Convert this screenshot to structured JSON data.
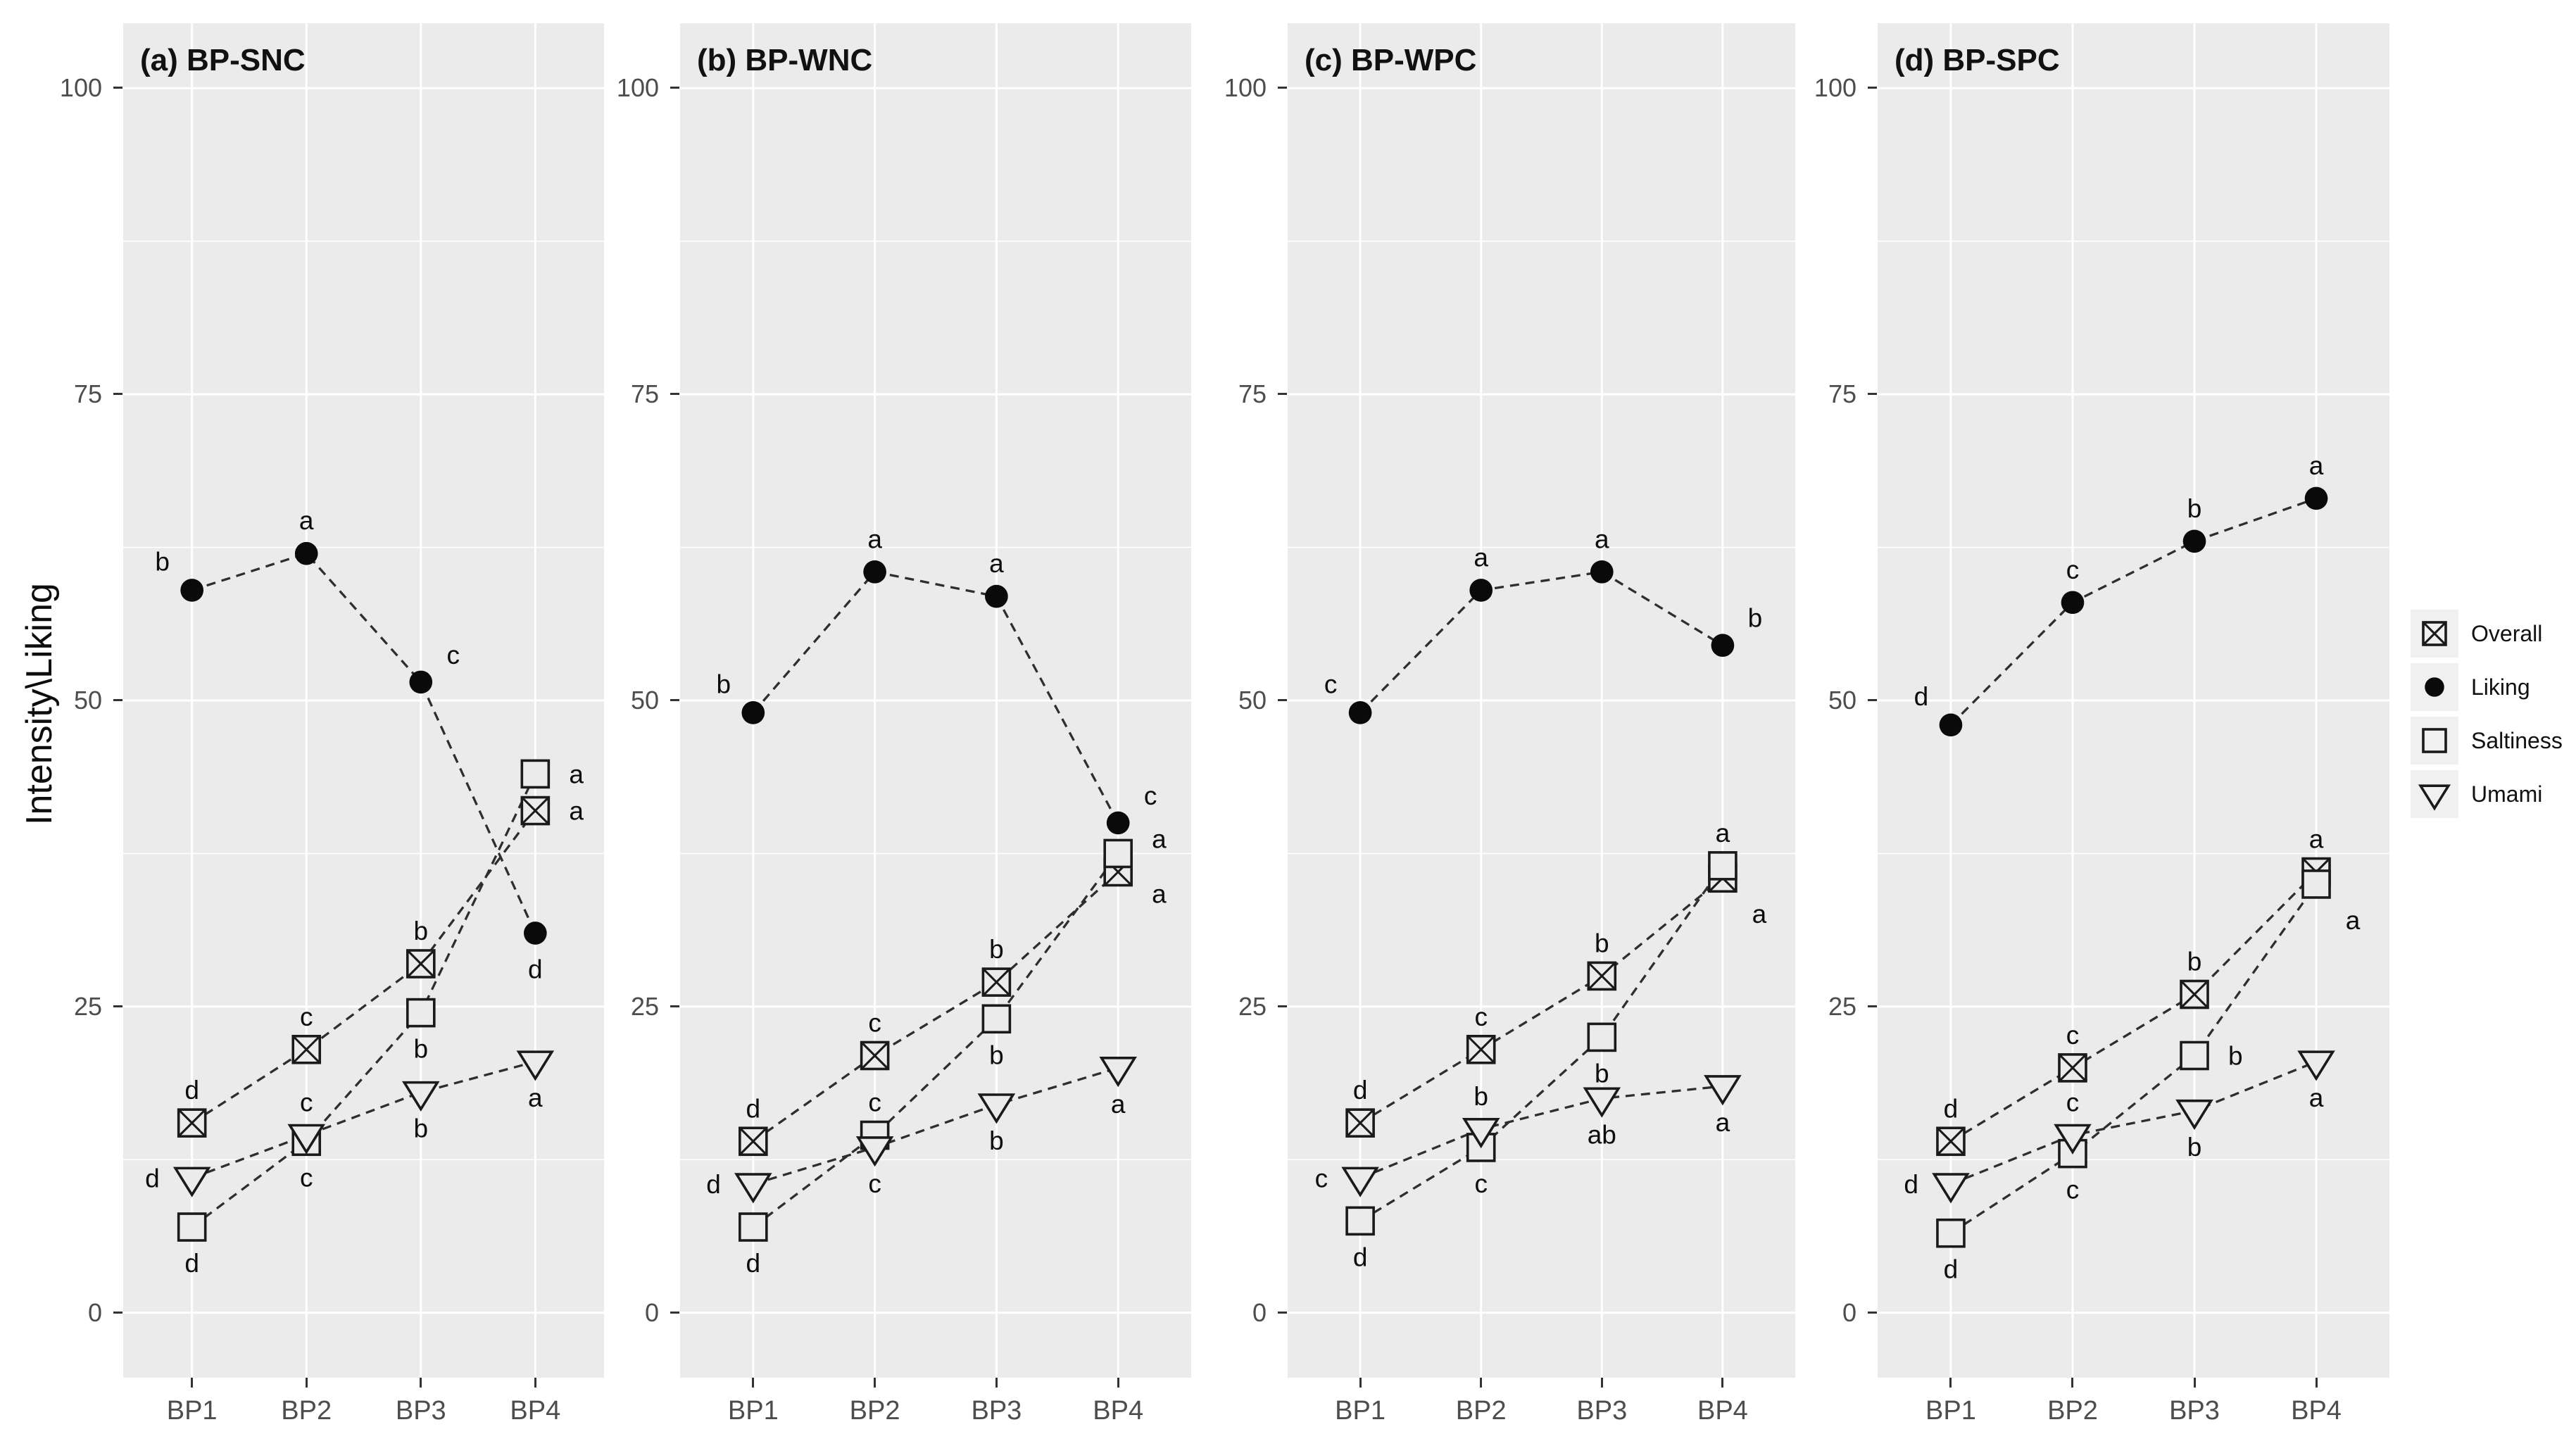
{
  "figure": {
    "y_axis_label": "Intensity\\Liking",
    "y_ticks": [
      "100",
      "75",
      "50",
      "25",
      "0"
    ],
    "x_categories": [
      "BP1",
      "BP2",
      "BP3",
      "BP4"
    ],
    "legend": {
      "position": "right",
      "items": [
        {
          "label": "Overall",
          "marker": "square-cross"
        },
        {
          "label": "Liking",
          "marker": "filled-circle"
        },
        {
          "label": "Saltiness",
          "marker": "open-square"
        },
        {
          "label": "Umami",
          "marker": "open-triangle-down"
        }
      ]
    },
    "colors": {
      "panel_bg": "#ebebeb",
      "gridline": "#ffffff",
      "tick_text": "#4d4d4d",
      "marker_stroke": "#1a1a1a",
      "line": "#2e2e2e",
      "letter": "#0d0d0d",
      "legend_key_bg": "#f0f0f0"
    }
  },
  "chart_data": {
    "type": "line",
    "x": [
      "BP1",
      "BP2",
      "BP3",
      "BP4"
    ],
    "ylabel": "Intensity\\Liking",
    "ylim": [
      0,
      100
    ],
    "y_major_gridlines": [
      0,
      25,
      50,
      75,
      100
    ],
    "y_minor_gridlines": [
      12.5,
      37.5,
      62.5,
      87.5
    ],
    "grid": "on",
    "line_style": "dashed",
    "legend_position": "right",
    "panels": [
      {
        "id": "a",
        "title": "(a) BP-SNC",
        "series": [
          {
            "name": "Overall",
            "marker": "square-cross",
            "values": [
              15.5,
              21.5,
              28.5,
              41
            ],
            "letters": [
              "d",
              "c",
              "b",
              "a"
            ],
            "letter_pos": [
              "above",
              "above",
              "above",
              "right"
            ]
          },
          {
            "name": "Liking",
            "marker": "filled-circle",
            "values": [
              59,
              62,
              51.5,
              31
            ],
            "letters": [
              "b",
              "a",
              "c",
              "d"
            ],
            "letter_pos": [
              "above-left",
              "above",
              "above-right",
              "below"
            ]
          },
          {
            "name": "Saltiness",
            "marker": "open-square",
            "values": [
              7,
              14,
              24.5,
              44
            ],
            "letters": [
              "d",
              "c",
              "b",
              "a"
            ],
            "letter_pos": [
              "below",
              "below",
              "below",
              "right"
            ]
          },
          {
            "name": "Umami",
            "marker": "open-triangle-down",
            "values": [
              11,
              14.5,
              18,
              20.5
            ],
            "letters": [
              "d",
              "c",
              "b",
              "a"
            ],
            "letter_pos": [
              "left",
              "above",
              "below",
              "below"
            ]
          }
        ]
      },
      {
        "id": "b",
        "title": "(b) BP-WNC",
        "series": [
          {
            "name": "Overall",
            "marker": "square-cross",
            "values": [
              14,
              21,
              27,
              36
            ],
            "letters": [
              "d",
              "c",
              "b",
              "a"
            ],
            "letter_pos": [
              "above",
              "above",
              "above",
              "right-down"
            ]
          },
          {
            "name": "Liking",
            "marker": "filled-circle",
            "values": [
              49,
              60.5,
              58.5,
              40
            ],
            "letters": [
              "b",
              "a",
              "a",
              "c"
            ],
            "letter_pos": [
              "above-left",
              "above",
              "above",
              "above-right"
            ]
          },
          {
            "name": "Saltiness",
            "marker": "open-square",
            "values": [
              7,
              14.5,
              24,
              37.5
            ],
            "letters": [
              "d",
              "c",
              "b",
              "a"
            ],
            "letter_pos": [
              "below",
              "above",
              "below",
              "right-up"
            ]
          },
          {
            "name": "Umami",
            "marker": "open-triangle-down",
            "values": [
              10.5,
              13.5,
              17,
              20
            ],
            "letters": [
              "d",
              "c",
              "b",
              "a"
            ],
            "letter_pos": [
              "left",
              "below",
              "below",
              "below"
            ]
          }
        ]
      },
      {
        "id": "c",
        "title": "(c) BP-WPC",
        "series": [
          {
            "name": "Overall",
            "marker": "square-cross",
            "values": [
              15.5,
              21.5,
              27.5,
              35.5
            ],
            "letters": [
              "d",
              "c",
              "b",
              "a"
            ],
            "letter_pos": [
              "above",
              "above",
              "above",
              "below-right"
            ]
          },
          {
            "name": "Liking",
            "marker": "filled-circle",
            "values": [
              49,
              59,
              60.5,
              54.5
            ],
            "letters": [
              "c",
              "a",
              "a",
              "b"
            ],
            "letter_pos": [
              "above-left",
              "above",
              "above",
              "above-right"
            ]
          },
          {
            "name": "Saltiness",
            "marker": "open-square",
            "values": [
              7.5,
              13.5,
              22.5,
              36.5
            ],
            "letters": [
              "d",
              "c",
              "b",
              "a"
            ],
            "letter_pos": [
              "below",
              "below",
              "below",
              "above"
            ]
          },
          {
            "name": "Umami",
            "marker": "open-triangle-down",
            "values": [
              11,
              15,
              17.5,
              18.5
            ],
            "letters": [
              "c",
              "b",
              "ab",
              "a"
            ],
            "letter_pos": [
              "left",
              "above",
              "below",
              "below"
            ]
          }
        ]
      },
      {
        "id": "d",
        "title": "(d) BP-SPC",
        "series": [
          {
            "name": "Overall",
            "marker": "square-cross",
            "values": [
              14,
              20,
              26,
              36
            ],
            "letters": [
              "d",
              "c",
              "b",
              "a"
            ],
            "letter_pos": [
              "above",
              "above",
              "above",
              "above"
            ]
          },
          {
            "name": "Liking",
            "marker": "filled-circle",
            "values": [
              48,
              58,
              63,
              66.5
            ],
            "letters": [
              "d",
              "c",
              "b",
              "a"
            ],
            "letter_pos": [
              "above-left",
              "above",
              "above",
              "above"
            ]
          },
          {
            "name": "Saltiness",
            "marker": "open-square",
            "values": [
              6.5,
              13,
              21,
              35
            ],
            "letters": [
              "d",
              "c",
              "b",
              "a"
            ],
            "letter_pos": [
              "below",
              "below",
              "right",
              "below-right"
            ]
          },
          {
            "name": "Umami",
            "marker": "open-triangle-down",
            "values": [
              10.5,
              14.5,
              16.5,
              20.5
            ],
            "letters": [
              "d",
              "c",
              "b",
              "a"
            ],
            "letter_pos": [
              "left",
              "above",
              "below",
              "below"
            ]
          }
        ]
      }
    ]
  }
}
